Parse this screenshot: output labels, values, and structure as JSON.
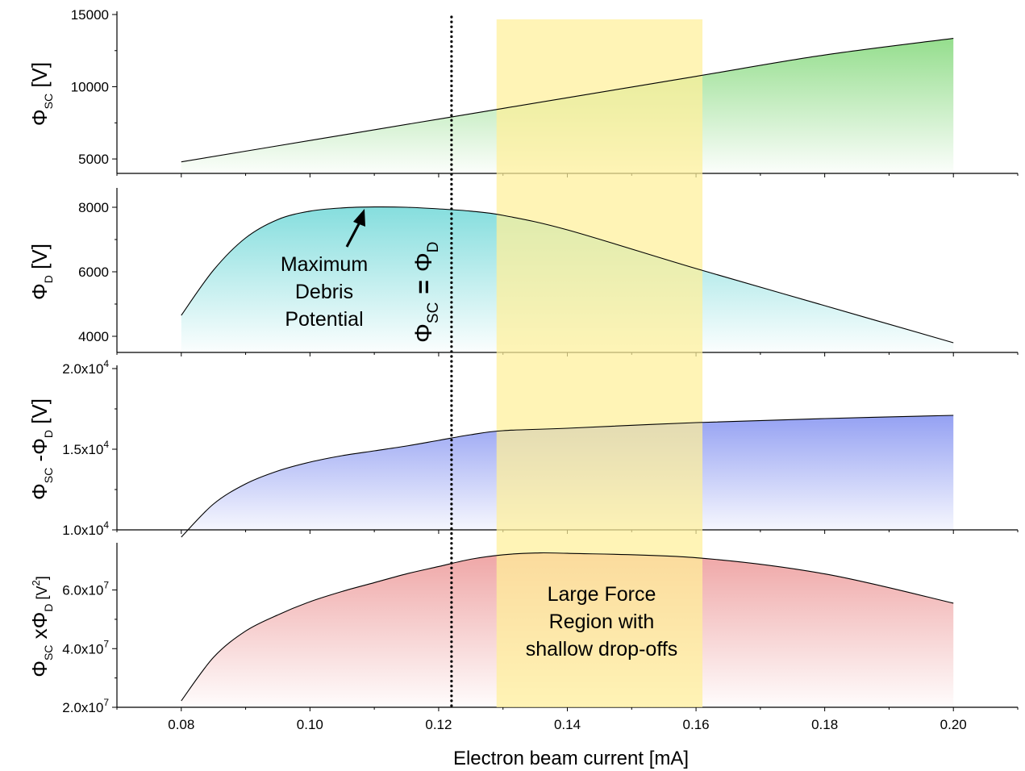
{
  "figure": {
    "xlabel": "Electron beam current [mA]",
    "xlim": [
      0.07,
      0.21
    ],
    "x_ticks": [
      "0.08",
      "0.10",
      "0.12",
      "0.14",
      "0.16",
      "0.18",
      "0.20"
    ],
    "x_tick_values": [
      0.08,
      0.1,
      0.12,
      0.14,
      0.16,
      0.18,
      0.2
    ],
    "highlight": {
      "x_start": 0.129,
      "x_end": 0.161,
      "color": "#fff09a",
      "label_lines": [
        "Large Force",
        "Region with",
        "shallow drop-offs"
      ]
    },
    "marker_line": {
      "x": 0.122,
      "label": {
        "phi1": "Φ",
        "sub1": "SC",
        "eq": "=",
        "phi2": "Φ",
        "sub2": "D"
      }
    },
    "annotation": {
      "lines": [
        "Maximum",
        "Debris",
        "Potential"
      ],
      "arrow_target": {
        "x": 0.11,
        "y": 8000
      }
    }
  },
  "chart_data": [
    {
      "type": "area",
      "ylabel": {
        "symbol": "Φ",
        "sub": "SC",
        "rest": " [V]"
      },
      "ylim": [
        4000,
        15000
      ],
      "y_ticks": [
        "5000",
        "10000",
        "15000"
      ],
      "y_tick_values": [
        5000,
        10000,
        15000
      ],
      "color": "#8fdc87",
      "x": [
        0.08,
        0.1,
        0.12,
        0.14,
        0.16,
        0.18,
        0.2
      ],
      "y": [
        4800,
        6280,
        7760,
        9240,
        10720,
        12200,
        13350
      ]
    },
    {
      "type": "area",
      "ylabel": {
        "symbol": "Φ",
        "sub": "D",
        "rest": " [V]"
      },
      "ylim": [
        3500,
        8500
      ],
      "y_ticks": [
        "4000",
        "6000",
        "8000"
      ],
      "y_tick_values": [
        4000,
        6000,
        8000
      ],
      "color": "#7fdcdc",
      "x": [
        0.08,
        0.085,
        0.09,
        0.095,
        0.1,
        0.105,
        0.11,
        0.115,
        0.12,
        0.125,
        0.13,
        0.14,
        0.16,
        0.18,
        0.2
      ],
      "y": [
        4650,
        6050,
        7050,
        7620,
        7880,
        7980,
        8010,
        8000,
        7950,
        7880,
        7750,
        7300,
        6100,
        4950,
        3800
      ]
    },
    {
      "type": "area",
      "ylabel": {
        "symbol": "Φ",
        "sub": "SC",
        "mid": " -",
        "symbol2": "Φ",
        "sub2": "D",
        "rest": " [V]"
      },
      "ylim": [
        10000,
        20000
      ],
      "y_ticks": [
        [
          "1.0x10",
          "4"
        ],
        [
          "1.5x10",
          "4"
        ],
        [
          "2.0x10",
          "4"
        ]
      ],
      "y_tick_values": [
        10000,
        15000,
        20000
      ],
      "color": "#8f9cf2",
      "x": [
        0.08,
        0.085,
        0.09,
        0.095,
        0.1,
        0.105,
        0.11,
        0.115,
        0.12,
        0.125,
        0.13,
        0.14,
        0.16,
        0.18,
        0.2
      ],
      "y": [
        9550,
        11600,
        12850,
        13650,
        14200,
        14600,
        14900,
        15200,
        15550,
        15900,
        16150,
        16300,
        16650,
        16900,
        17100
      ]
    },
    {
      "type": "area",
      "ylabel": {
        "symbol": "Φ",
        "sub": "SC",
        "mid": " x",
        "symbol2": "Φ",
        "sub2": "D",
        "rest": " [V",
        "sup": "2",
        "end": "]"
      },
      "ylim": [
        20000000,
        75000000
      ],
      "y_ticks": [
        [
          "2.0x10",
          "7"
        ],
        [
          "4.0x10",
          "7"
        ],
        [
          "6.0x10",
          "7"
        ]
      ],
      "y_tick_values": [
        20000000,
        40000000,
        60000000
      ],
      "color": "#eea1a1",
      "x": [
        0.08,
        0.085,
        0.09,
        0.095,
        0.1,
        0.105,
        0.11,
        0.115,
        0.12,
        0.125,
        0.13,
        0.135,
        0.14,
        0.16,
        0.18,
        0.2
      ],
      "y": [
        22200000,
        37000000,
        46000000,
        51500000,
        56000000,
        59500000,
        62500000,
        65500000,
        68000000,
        70500000,
        72000000,
        72600000,
        72500000,
        71000000,
        65500000,
        55500000
      ]
    }
  ]
}
